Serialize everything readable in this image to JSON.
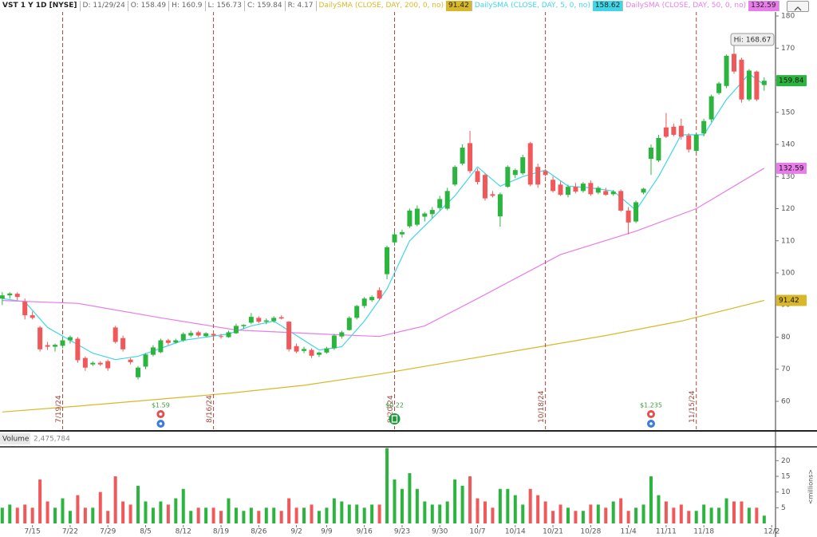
{
  "chart_data": [
    {
      "type": "candlestick",
      "title": "VST 1 Y 1D [NYSE]",
      "info": [
        "D: 11/29/24",
        "O: 158.49",
        "H: 160.9",
        "L: 156.73",
        "C: 159.84",
        "R: 4.17"
      ],
      "up_color": "#2cb53e",
      "down_color": "#f0585a",
      "xlim": [
        -0.3,
        102.5
      ],
      "ylim": [
        51.3,
        181.5
      ],
      "yticks": [
        60,
        70,
        80,
        90,
        100,
        110,
        120,
        130,
        140,
        150,
        160,
        170,
        180
      ],
      "x": [
        0,
        1,
        2,
        3,
        4,
        5,
        6,
        7,
        8,
        9,
        10,
        11,
        12,
        13,
        14,
        15,
        16,
        17,
        18,
        19,
        20,
        21,
        22,
        23,
        24,
        25,
        26,
        27,
        28,
        29,
        30,
        31,
        32,
        33,
        34,
        35,
        36,
        37,
        38,
        39,
        40,
        41,
        42,
        43,
        44,
        45,
        46,
        47,
        48,
        49,
        50,
        51,
        52,
        53,
        54,
        55,
        56,
        57,
        58,
        59,
        60,
        61,
        62,
        63,
        64,
        65,
        66,
        67,
        68,
        69,
        70,
        71,
        72,
        73,
        74,
        75,
        76,
        77,
        78,
        79,
        80,
        81,
        82,
        83,
        84,
        85,
        86,
        87,
        88,
        89,
        90,
        91,
        92,
        93,
        94,
        95,
        96,
        97,
        98,
        99,
        100,
        101
      ],
      "open": [
        92,
        93,
        93.5,
        91,
        86.8,
        83,
        77.5,
        77,
        77.3,
        79,
        79.5,
        73.5,
        71.5,
        72,
        72.5,
        83,
        79.7,
        73,
        67.5,
        70.8,
        74.5,
        75.3,
        79,
        78.3,
        79,
        80.5,
        81.5,
        80.3,
        81,
        80.3,
        80,
        81.2,
        83.4,
        84.5,
        86,
        84.8,
        85,
        86.2,
        84.8,
        77.2,
        75.7,
        76,
        74.5,
        75.2,
        76.5,
        80.2,
        82.2,
        86,
        89.7,
        91.5,
        94.6,
        99.6,
        109.5,
        112,
        114.5,
        115,
        117.5,
        118.3,
        120.2,
        120,
        127.5,
        134,
        140.4,
        131.7,
        130.5,
        124.5,
        117.6,
        126.8,
        130.5,
        131,
        140.4,
        133,
        131.7,
        129,
        127.5,
        124.3,
        126.8,
        125.5,
        128,
        125,
        125.5,
        124.5,
        125.5,
        119.4,
        116,
        125,
        135.5,
        135,
        145.3,
        145.5,
        145.8,
        142.8,
        138,
        143.4,
        147.8,
        156,
        158.2,
        168.2,
        166.4,
        154,
        162.7,
        158.49
      ],
      "high": [
        94,
        94,
        94,
        92,
        88,
        83.5,
        78.5,
        78,
        80,
        80.5,
        80,
        74,
        72.5,
        72.5,
        73,
        83.5,
        80.5,
        73.5,
        71,
        75,
        77.5,
        79.5,
        79.5,
        79.5,
        81.5,
        82,
        82,
        81.5,
        81.5,
        81,
        82,
        84.2,
        84,
        87.5,
        86.5,
        85.8,
        86.5,
        86.8,
        85,
        78,
        77,
        76.5,
        75.5,
        77,
        81,
        82,
        86.5,
        90,
        92.5,
        93,
        95.5,
        108.5,
        113,
        113.5,
        120,
        121,
        119,
        120.5,
        124,
        126.5,
        133.5,
        140,
        144.2,
        132.5,
        131,
        125.5,
        125,
        133.5,
        132.5,
        136.8,
        140.8,
        134,
        132.3,
        130,
        128.5,
        127.5,
        128,
        128.3,
        128.8,
        127,
        126.5,
        125.8,
        126,
        120.5,
        122.5,
        126.5,
        140,
        143,
        149.8,
        146.5,
        148,
        143.5,
        143.5,
        148,
        155.5,
        159.5,
        168,
        168.67,
        167,
        163.5,
        163,
        160.9
      ],
      "low": [
        90,
        92,
        91.5,
        85.5,
        85.5,
        75.5,
        76,
        75.5,
        76.5,
        78,
        72,
        69.5,
        71,
        71,
        69.5,
        78,
        75.5,
        71.5,
        66.8,
        70,
        74,
        75,
        77.5,
        78,
        78.5,
        80,
        80,
        80,
        80,
        79.5,
        79.8,
        81,
        82.5,
        84,
        84.3,
        84,
        84.5,
        85.5,
        75.5,
        75,
        75,
        73.5,
        73.8,
        74.8,
        76,
        79.5,
        82,
        85.5,
        89,
        91,
        91.5,
        98,
        108.5,
        111,
        114,
        114.5,
        116,
        117,
        119.5,
        119.5,
        127,
        133.5,
        131,
        127.5,
        122.5,
        123.5,
        114.4,
        126.5,
        129.5,
        130.5,
        127,
        126.5,
        130,
        125,
        124,
        123.5,
        124.8,
        125,
        124,
        124.5,
        124,
        124,
        119,
        112,
        115.5,
        124.5,
        130.5,
        134.5,
        142,
        142.5,
        141.5,
        137.5,
        137.5,
        142.5,
        147,
        155.5,
        157.5,
        162,
        153,
        153.5,
        153.5,
        156.73
      ],
      "close": [
        93,
        93.6,
        92.5,
        86.8,
        86,
        76.2,
        77,
        77.6,
        79,
        80,
        72.8,
        70.5,
        72,
        71.5,
        70.3,
        78.5,
        76.2,
        72.2,
        70.5,
        74.6,
        76.8,
        79,
        78.2,
        79,
        81,
        81.3,
        80.5,
        81.2,
        80.5,
        80.2,
        81.5,
        83.5,
        83.8,
        86.3,
        84.8,
        85.2,
        86,
        85.8,
        76.2,
        75.5,
        76.3,
        74.2,
        75.2,
        76.5,
        80.5,
        81.5,
        86,
        89.7,
        92,
        92.5,
        92,
        108,
        112,
        112.7,
        119.4,
        120,
        118.5,
        119.6,
        123,
        125.5,
        133,
        139,
        131.7,
        128.3,
        123.2,
        124,
        124.5,
        133,
        132,
        136,
        127.5,
        127.5,
        130.5,
        125.5,
        124.3,
        126.8,
        125.3,
        127.8,
        124.5,
        126.5,
        124.3,
        125.3,
        119.4,
        115.7,
        122,
        126.2,
        139,
        142,
        142.4,
        143,
        142.4,
        138.4,
        143,
        147.3,
        155,
        159,
        167.6,
        162.7,
        154,
        163,
        154,
        159.84
      ],
      "series": [
        {
          "name": "DailySMA (CLOSE, DAY, 200, 0, no)",
          "color": "#d9b828",
          "x": [
            0,
            10,
            20,
            30,
            40,
            50,
            60,
            70,
            80,
            90,
            101
          ],
          "values": [
            56.7,
            58.5,
            60.5,
            62.5,
            65,
            68.5,
            72.5,
            76.5,
            80.5,
            85,
            91.42
          ]
        },
        {
          "name": "DailySMA (CLOSE, DAY, 5, 0, no)",
          "color": "#3fd6e8",
          "x": [
            0,
            3,
            6,
            9,
            12,
            15,
            18,
            21,
            24,
            27,
            30,
            33,
            36,
            39,
            42,
            45,
            48,
            51,
            54,
            57,
            60,
            63,
            66,
            69,
            72,
            75,
            78,
            81,
            84,
            87,
            90,
            93,
            96,
            99,
            101
          ],
          "values": [
            92,
            91,
            83,
            79,
            75,
            73,
            74,
            76.5,
            79,
            80,
            81,
            83.5,
            85,
            80.5,
            76,
            77,
            85,
            95,
            110,
            117,
            124,
            133,
            127,
            130,
            132,
            127,
            126.5,
            125.5,
            119.5,
            130,
            143,
            143,
            154,
            162,
            158.62
          ]
        },
        {
          "name": "DailySMA (CLOSE, DAY, 50, 0, no)",
          "color": "#e87ce8",
          "x": [
            0,
            10,
            21,
            31,
            42,
            50,
            56,
            63,
            74,
            84,
            92,
            101
          ],
          "values": [
            91.4,
            90.5,
            86,
            82.2,
            81,
            80.2,
            83.5,
            92,
            105.7,
            113,
            120,
            132.59
          ]
        }
      ],
      "expirations": [
        {
          "x": 8,
          "label": "7/19/24"
        },
        {
          "x": 28,
          "label": "8/16/24"
        },
        {
          "x": 52,
          "label": "9/20/24"
        },
        {
          "x": 72,
          "label": "10/18/24"
        },
        {
          "x": 92,
          "label": "11/15/24"
        }
      ],
      "dividends": [
        {
          "x": 21,
          "label": "$1.59"
        },
        {
          "x": 52,
          "label": "$0.22"
        },
        {
          "x": 86,
          "label": "$1.235"
        }
      ],
      "earnings": [
        {
          "x": 52
        }
      ],
      "annotation": {
        "text": "Hi: 168.67",
        "x": 97
      }
    },
    {
      "type": "bar",
      "title": "Volume",
      "subtitle": "2,475,784",
      "y_label": "<millions>",
      "xlim": [
        -0.3,
        102.5
      ],
      "ylim": [
        0,
        24.4
      ],
      "yticks": [
        5,
        10,
        15,
        20
      ],
      "xticks": [
        {
          "value": 4,
          "label": "7/15"
        },
        {
          "value": 9,
          "label": "7/22"
        },
        {
          "value": 14,
          "label": "7/29"
        },
        {
          "value": 19,
          "label": "8/5"
        },
        {
          "value": 24,
          "label": "8/12"
        },
        {
          "value": 29,
          "label": "8/19"
        },
        {
          "value": 34,
          "label": "8/26"
        },
        {
          "value": 39,
          "label": "9/2"
        },
        {
          "value": 43,
          "label": "9/9"
        },
        {
          "value": 48,
          "label": "9/16"
        },
        {
          "value": 53,
          "label": "9/23"
        },
        {
          "value": 58,
          "label": "9/30"
        },
        {
          "value": 63,
          "label": "10/7"
        },
        {
          "value": 68,
          "label": "10/14"
        },
        {
          "value": 73,
          "label": "10/21"
        },
        {
          "value": 78,
          "label": "10/28"
        },
        {
          "value": 83,
          "label": "11/4"
        },
        {
          "value": 88,
          "label": "11/11"
        },
        {
          "value": 93,
          "label": "11/18"
        },
        {
          "value": 102,
          "label": "12/2"
        }
      ],
      "x": [
        0,
        1,
        2,
        3,
        4,
        5,
        6,
        7,
        8,
        9,
        10,
        11,
        12,
        13,
        14,
        15,
        16,
        17,
        18,
        19,
        20,
        21,
        22,
        23,
        24,
        25,
        26,
        27,
        28,
        29,
        30,
        31,
        32,
        33,
        34,
        35,
        36,
        37,
        38,
        39,
        40,
        41,
        42,
        43,
        44,
        45,
        46,
        47,
        48,
        49,
        50,
        51,
        52,
        53,
        54,
        55,
        56,
        57,
        58,
        59,
        60,
        61,
        62,
        63,
        64,
        65,
        66,
        67,
        68,
        69,
        70,
        71,
        72,
        73,
        74,
        75,
        76,
        77,
        78,
        79,
        80,
        81,
        82,
        83,
        84,
        85,
        86,
        87,
        88,
        89,
        90,
        91,
        92,
        93,
        94,
        95,
        96,
        97,
        98,
        99,
        100,
        101
      ],
      "values": [
        5,
        6,
        5,
        6,
        5,
        14,
        7,
        5,
        8,
        4,
        9,
        5,
        5,
        10,
        4,
        15,
        7,
        6,
        12,
        7,
        5,
        7,
        6,
        8,
        11,
        4,
        5,
        5,
        5,
        4,
        8,
        5,
        4,
        5,
        4,
        5,
        5,
        4,
        8,
        5,
        5,
        6,
        4,
        5,
        8,
        7,
        6,
        6,
        5,
        6,
        6,
        24,
        14,
        11,
        16,
        11,
        7,
        6,
        6,
        7,
        14,
        12,
        15,
        8,
        7,
        5,
        11,
        11,
        9,
        6,
        11,
        9,
        7,
        4,
        6,
        5,
        4,
        4,
        6,
        6,
        5,
        7,
        8,
        4,
        5,
        6,
        15,
        9,
        7,
        5,
        6,
        4,
        4,
        6,
        5,
        5,
        8,
        7,
        7,
        5,
        5,
        2.475784
      ]
    }
  ]
}
